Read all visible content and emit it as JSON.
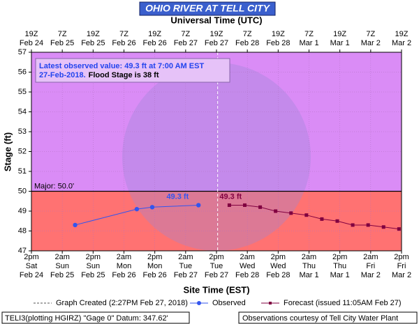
{
  "chart_data": {
    "type": "line",
    "title": "OHIO RIVER AT TELL CITY",
    "x_label_top": "Universal Time (UTC)",
    "x_label": "Site Time (EST)",
    "y_label": "Stage (ft)",
    "xlim": [
      "2018-02-24T14:00",
      "2018-03-02T14:00"
    ],
    "xticks": [
      {
        "value": "2018-02-24T14:00",
        "label": "2pm\nSat\nFeb 24"
      },
      {
        "value": "2018-02-25T02:00",
        "label": "2am\nSun\nFeb 25"
      },
      {
        "value": "2018-02-25T14:00",
        "label": "2pm\nSun\nFeb 25"
      },
      {
        "value": "2018-02-26T02:00",
        "label": "2am\nMon\nFeb 26"
      },
      {
        "value": "2018-02-26T14:00",
        "label": "2pm\nMon\nFeb 26"
      },
      {
        "value": "2018-02-27T02:00",
        "label": "2am\nTue\nFeb 27"
      },
      {
        "value": "2018-02-27T14:00",
        "label": "2pm\nTue\nFeb 27"
      },
      {
        "value": "2018-02-28T02:00",
        "label": "2am\nWed\nFeb 28"
      },
      {
        "value": "2018-02-28T14:00",
        "label": "2pm\nWed\nFeb 28"
      },
      {
        "value": "2018-03-01T02:00",
        "label": "2am\nThu\nMar 1"
      },
      {
        "value": "2018-03-01T14:00",
        "label": "2pm\nThu\nMar 1"
      },
      {
        "value": "2018-03-02T02:00",
        "label": "2am\nFri\nMar 2"
      },
      {
        "value": "2018-03-02T14:00",
        "label": "2pm\nFri\nMar 2"
      }
    ],
    "x2ticks": [
      {
        "value": "2018-02-24T14:00",
        "label": "19Z\nFeb 24"
      },
      {
        "value": "2018-02-25T02:00",
        "label": "7Z\nFeb 25"
      },
      {
        "value": "2018-02-25T14:00",
        "label": "19Z\nFeb 25"
      },
      {
        "value": "2018-02-26T02:00",
        "label": "7Z\nFeb 26"
      },
      {
        "value": "2018-02-26T14:00",
        "label": "19Z\nFeb 26"
      },
      {
        "value": "2018-02-27T02:00",
        "label": "7Z\nFeb 27"
      },
      {
        "value": "2018-02-27T14:00",
        "label": "19Z\nFeb 27"
      },
      {
        "value": "2018-02-28T02:00",
        "label": "7Z\nFeb 28"
      },
      {
        "value": "2018-02-28T14:00",
        "label": "19Z\nFeb 28"
      },
      {
        "value": "2018-03-01T02:00",
        "label": "7Z\nMar 1"
      },
      {
        "value": "2018-03-01T14:00",
        "label": "19Z\nMar 1"
      },
      {
        "value": "2018-03-02T02:00",
        "label": "7Z\nMar 2"
      },
      {
        "value": "2018-03-02T14:00",
        "label": "19Z\nMar 2"
      }
    ],
    "ylim": [
      47,
      57
    ],
    "yticks": [
      47,
      48,
      49,
      50,
      51,
      52,
      53,
      54,
      55,
      56,
      57
    ],
    "grid": true,
    "thresholds": [
      {
        "label": "Major: 50.0'",
        "value": 50,
        "color_above": "#da8cf6",
        "color_below": "#ff7272"
      }
    ],
    "created": {
      "x": "2018-02-27T14:27",
      "label": "Graph Created (2:27PM Feb 27, 2018)"
    },
    "annotation": [
      "Latest observed value: 49.3 ft at 7:00 AM EST",
      "27-Feb-2018.",
      "Flood Stage is 38 ft"
    ],
    "series": [
      {
        "name": "Observed",
        "color": "#3355ee",
        "marker": "circle",
        "x": [
          "2018-02-25T07:00",
          "2018-02-26T07:00",
          "2018-02-26T13:00",
          "2018-02-27T07:00"
        ],
        "values": [
          48.3,
          49.1,
          49.2,
          49.3
        ],
        "value_labels": [
          null,
          null,
          null,
          "49.3 ft"
        ]
      },
      {
        "name": "Forecast (issued 11:05AM Feb 27)",
        "color": "#800040",
        "marker": "square",
        "x": [
          "2018-02-27T19:00",
          "2018-02-28T01:00",
          "2018-02-28T07:00",
          "2018-02-28T13:00",
          "2018-02-28T19:00",
          "2018-03-01T01:00",
          "2018-03-01T07:00",
          "2018-03-01T13:00",
          "2018-03-01T19:00",
          "2018-03-02T01:00",
          "2018-03-02T07:00",
          "2018-03-02T13:00"
        ],
        "values": [
          49.3,
          49.3,
          49.2,
          49.0,
          48.9,
          48.8,
          48.6,
          48.5,
          48.3,
          48.3,
          48.2,
          48.1
        ],
        "value_labels": [
          "49.3 ft",
          null,
          null,
          null,
          null,
          null,
          null,
          null,
          null,
          null,
          null,
          null
        ]
      }
    ]
  },
  "footer": {
    "left": "TELI3(plotting HGIRZ) \"Gage 0\" Datum: 347.62'",
    "right": "Observations courtesy of Tell City Water Plant"
  }
}
